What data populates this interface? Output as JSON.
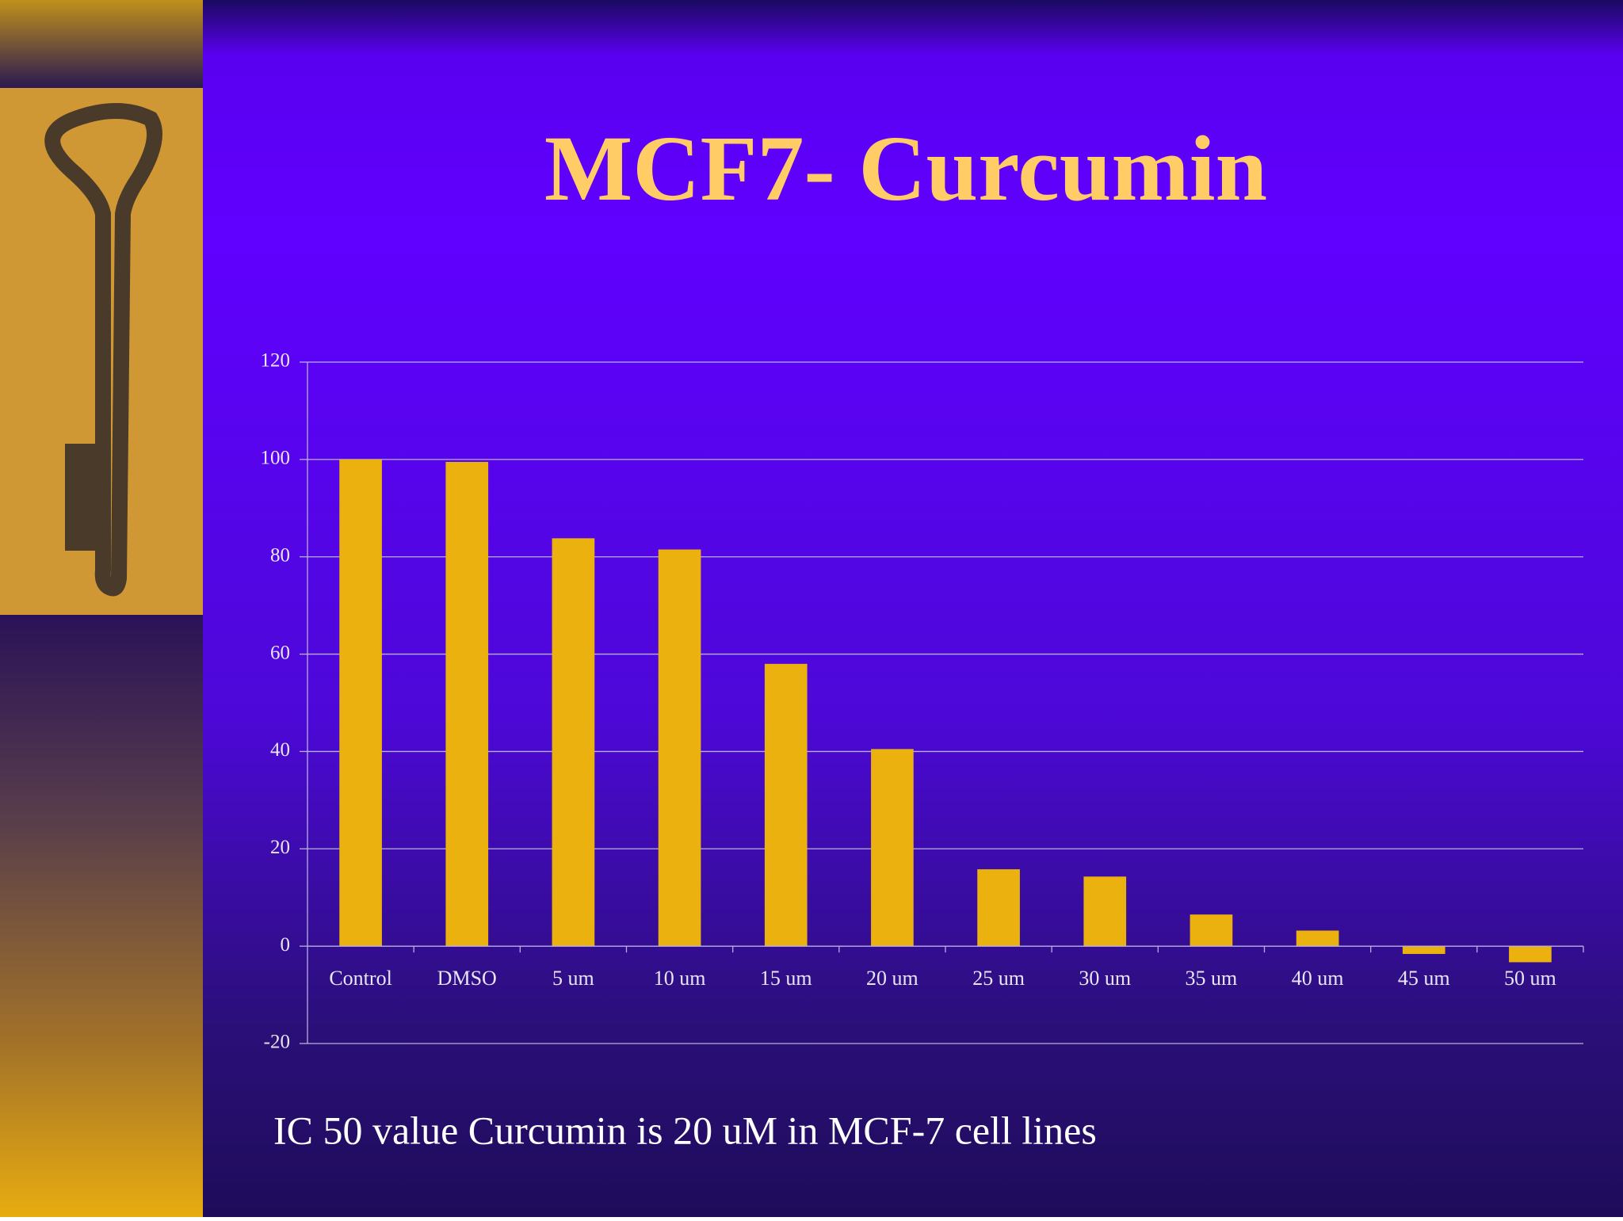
{
  "chart_data": {
    "type": "bar",
    "title": "MCF7- Curcumin",
    "annotation": "IC 50 value Curcumin is 20 uM in MCF-7 cell lines",
    "categories": [
      "Control",
      "DMSO",
      "5 um",
      "10 um",
      "15 um",
      "20 um",
      "25 um",
      "30 um",
      "35 um",
      "40 um",
      "45 um",
      "50 um"
    ],
    "values": [
      100,
      99.5,
      83.8,
      81.5,
      58,
      40.5,
      15.8,
      14.3,
      6.5,
      3.2,
      -1.6,
      -3.3
    ],
    "color": "#ebb20f",
    "ylim": [
      -20,
      120
    ],
    "yticks": [
      -20,
      0,
      20,
      40,
      60,
      80,
      100,
      120
    ],
    "grid": true
  }
}
